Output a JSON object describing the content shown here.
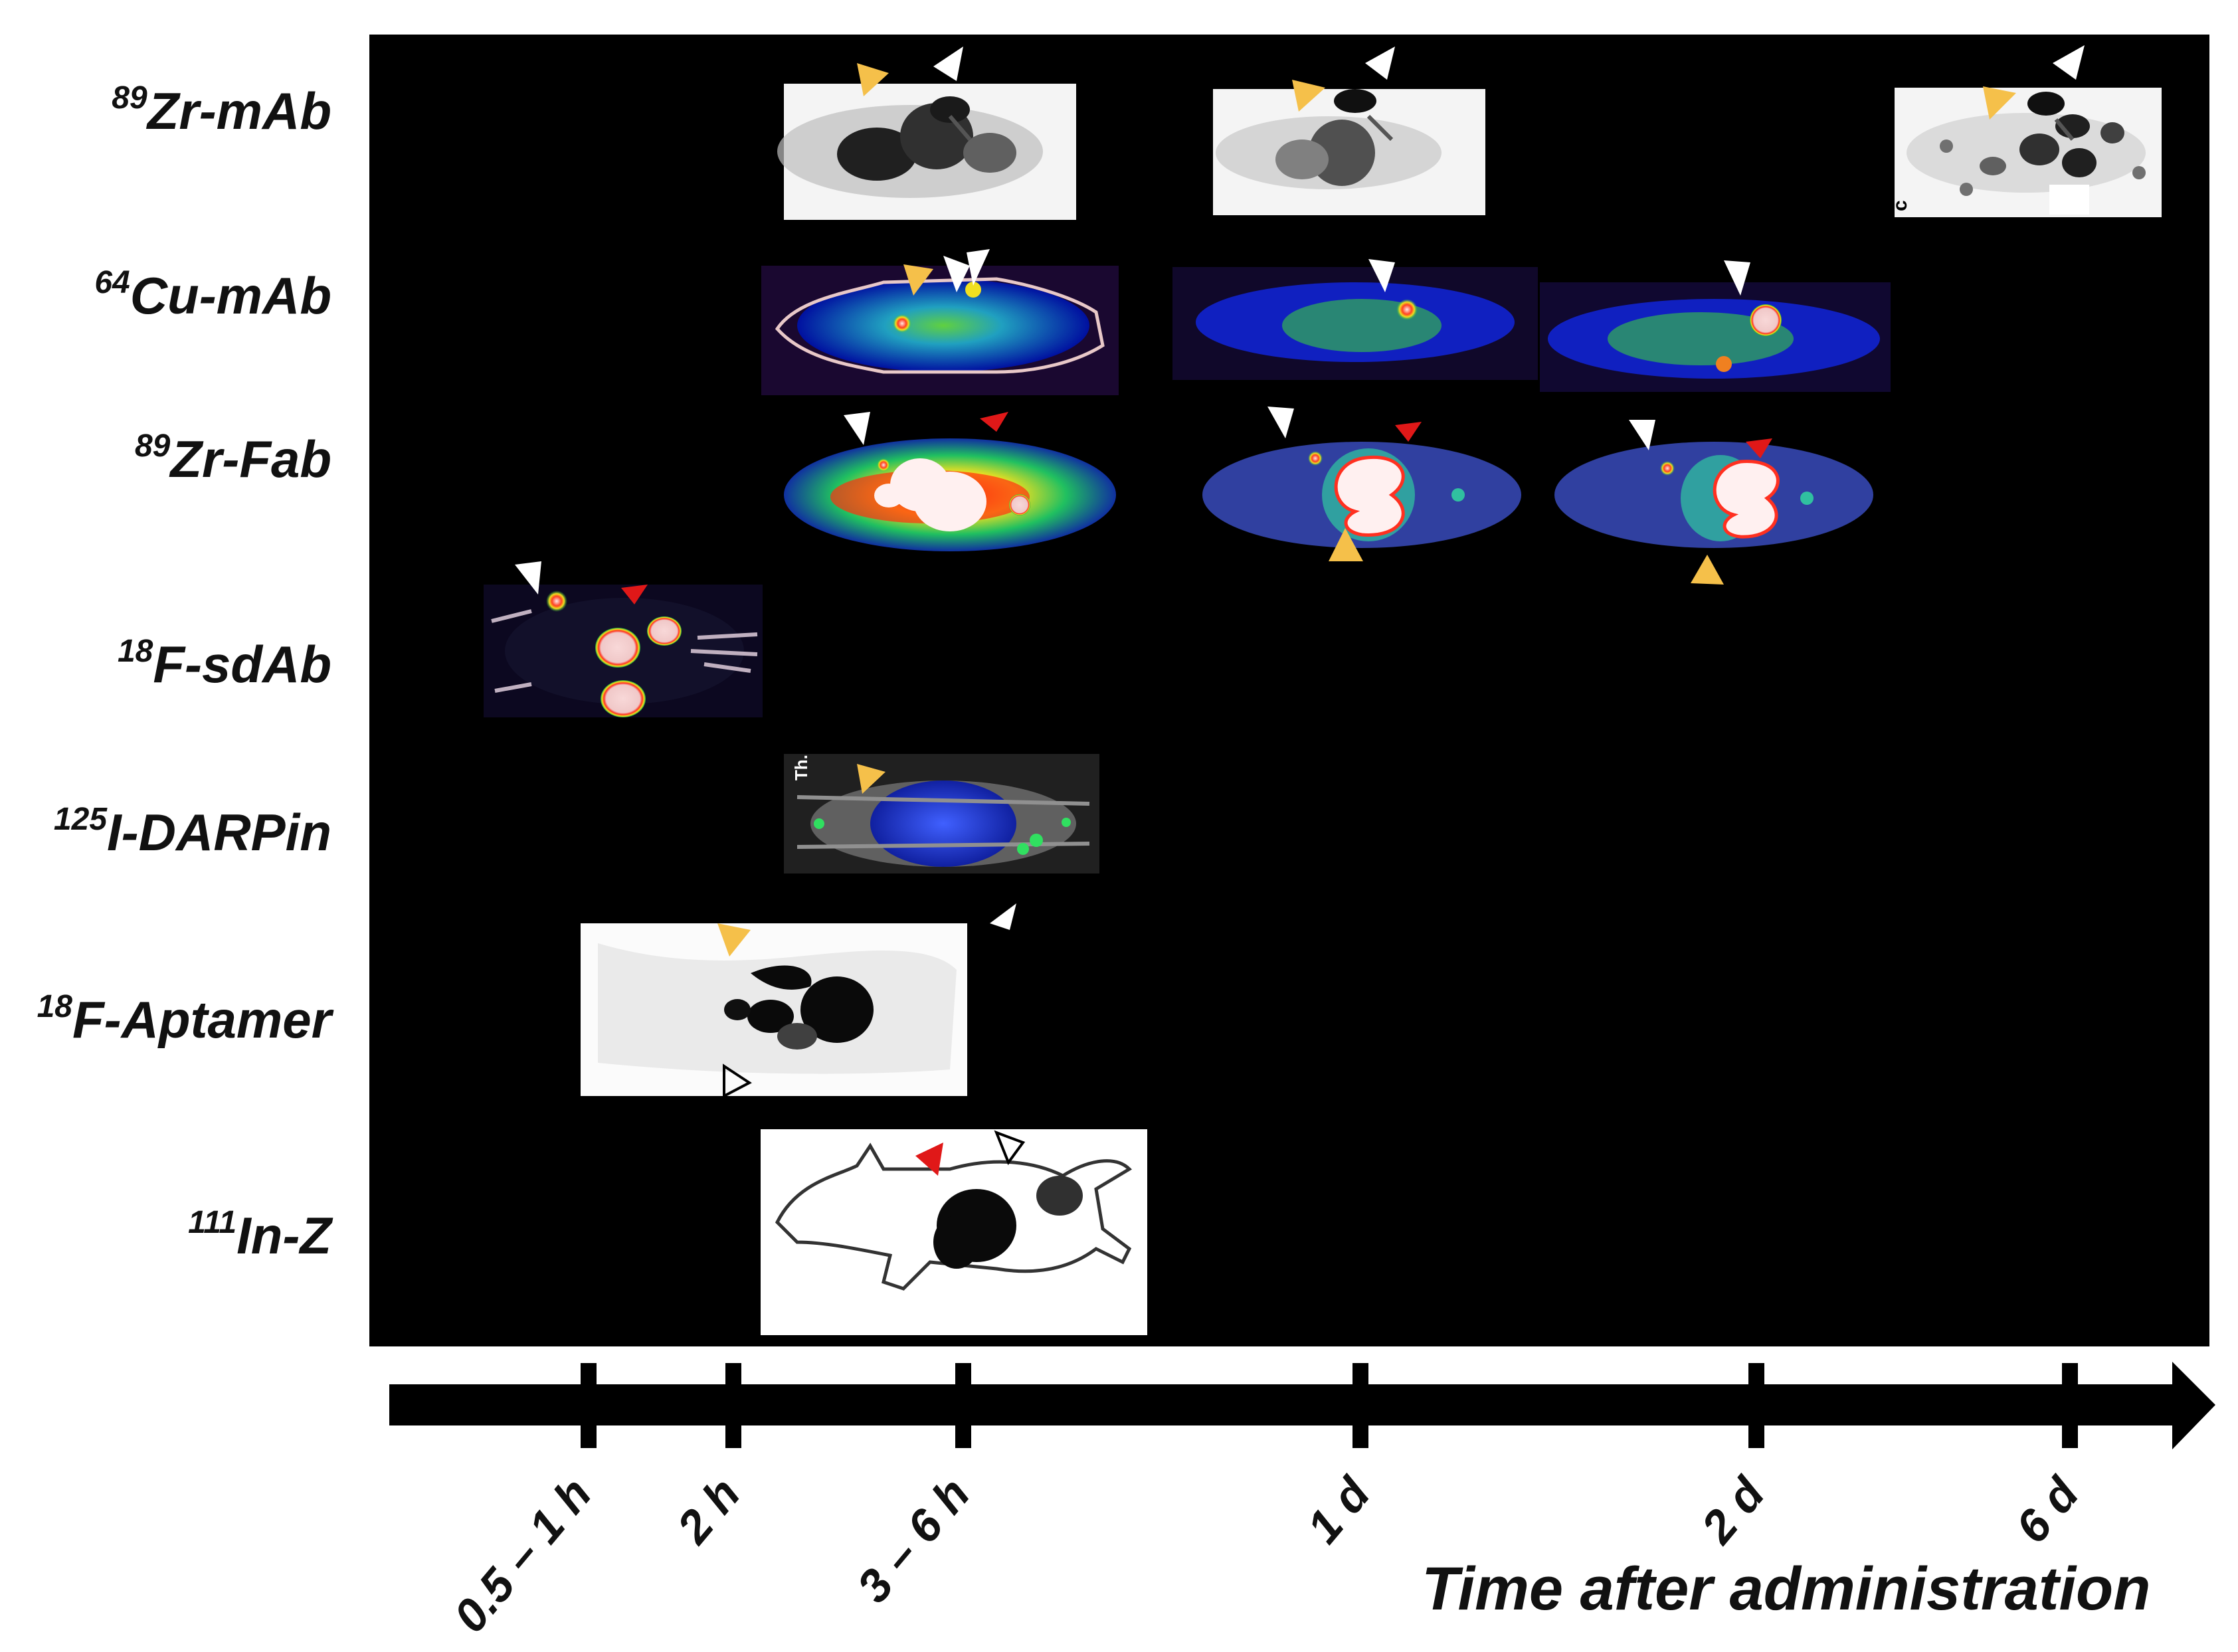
{
  "rows": [
    {
      "sup": "89",
      "name": "Zr-mAb"
    },
    {
      "sup": "64",
      "name": "Cu-mAb"
    },
    {
      "sup": "89",
      "name": "Zr-Fab"
    },
    {
      "sup": "18",
      "name": "F-sdAb"
    },
    {
      "sup": "125",
      "name": "I-DARPin"
    },
    {
      "sup": "18",
      "name": "F-Aptamer"
    },
    {
      "sup": "111",
      "name": "In-Z"
    }
  ],
  "ticks": [
    "0.5 – 1 h",
    "2 h",
    "3 – 6 h",
    "1 d",
    "2 d",
    "6 d"
  ],
  "axis_title": "Time after administration",
  "panel_texts": {
    "zr_mab_6d_letter": "c",
    "darpin_label": "Th."
  },
  "colors": {
    "background": "#000000",
    "yellow_arrow": "#f5c04a",
    "white_arrow": "#ffffff",
    "red_arrow": "#e01818"
  }
}
